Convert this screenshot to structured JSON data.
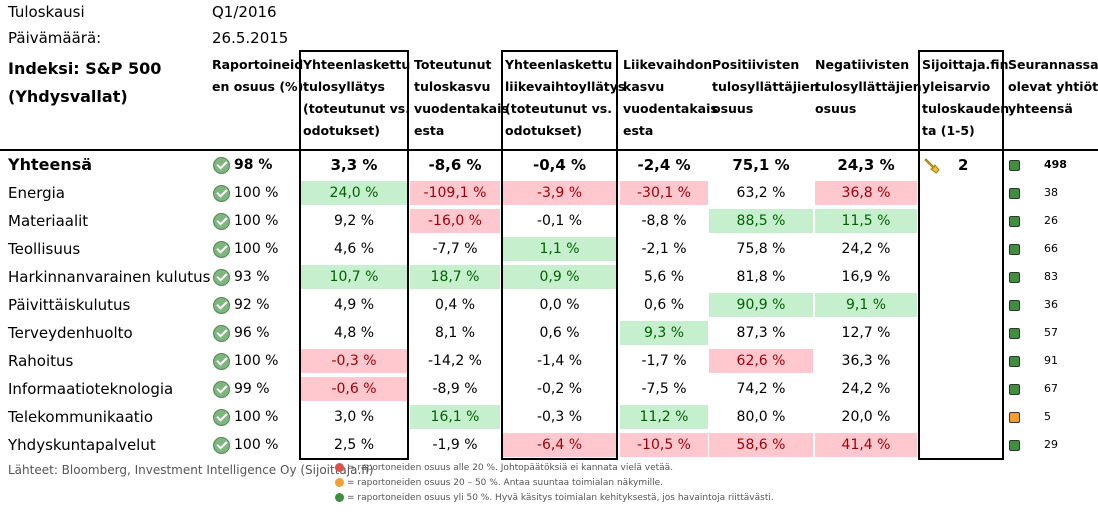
{
  "meta": {
    "season_label": "Tuloskausi",
    "season_value": "Q1/2016",
    "date_label": "Päivämäärä:",
    "date_value": "26.5.2015",
    "index_line1": "Indeksi: S&P 500",
    "index_line2": "(Yhdysvallat)"
  },
  "headers": {
    "reported": [
      "Raportoineid",
      "en osuus (%)"
    ],
    "eps_growth": [
      "Yhteenlaskettu",
      "tulosyllätys",
      "(toteutunut vs.",
      "odotukset)"
    ],
    "realized_growth": [
      "Toteutunut",
      "tuloskasvu",
      "vuodentakais",
      "esta"
    ],
    "rev_surprise": [
      "Yhteenlaskettu",
      "liikevaihtoyllätys",
      "(toteutunut vs.",
      "odotukset)"
    ],
    "rev_growth": [
      "Liikevaihdon",
      "kasvu",
      "vuodentakais",
      "esta"
    ],
    "positive": [
      "Positiivisten",
      "tulosyllättäjien",
      "osuus"
    ],
    "negative": [
      "Negatiivisten",
      "tulosyllättäjien",
      "osuus"
    ],
    "estimate": [
      "Sijoittaja.fin",
      "yleisarvio",
      "tuloskauden",
      "ta (1-5)"
    ],
    "followed": [
      "Seurannassa",
      "olevat yhtiöt",
      "yhteensä"
    ]
  },
  "total": {
    "label": "Yhteensä",
    "reported": "98 %",
    "eps": "3,3 %",
    "growth": "-8,6 %",
    "rev_surprise": "-0,4 %",
    "rev_growth": "-2,4 %",
    "positive": "75,1 %",
    "negative": "24,3 %",
    "estimate": "2",
    "count": "498"
  },
  "rows": [
    {
      "label": "Energia",
      "reported": "100 %",
      "eps": "24,0 %",
      "growth": "-109,1 %",
      "rev_surprise": "-3,9 %",
      "rev_growth": "-30,1 %",
      "positive": "63,2 %",
      "negative": "36,8 %",
      "count": "38"
    },
    {
      "label": "Materiaalit",
      "reported": "100 %",
      "eps": "9,2 %",
      "growth": "-16,0 %",
      "rev_surprise": "-0,1 %",
      "rev_growth": "-8,8 %",
      "positive": "88,5 %",
      "negative": "11,5 %",
      "count": "26"
    },
    {
      "label": "Teollisuus",
      "reported": "100 %",
      "eps": "4,6 %",
      "growth": "-7,7 %",
      "rev_surprise": "1,1 %",
      "rev_growth": "-2,1 %",
      "positive": "75,8 %",
      "negative": "24,2 %",
      "count": "66"
    },
    {
      "label": "Harkinnanvarainen kulutus",
      "reported": "93 %",
      "eps": "10,7 %",
      "growth": "18,7 %",
      "rev_surprise": "0,9 %",
      "rev_growth": "5,6 %",
      "positive": "81,8 %",
      "negative": "16,9 %",
      "count": "83"
    },
    {
      "label": "Päivittäiskulutus",
      "reported": "92 %",
      "eps": "4,9 %",
      "growth": "0,4 %",
      "rev_surprise": "0,0 %",
      "rev_growth": "0,6 %",
      "positive": "90,9 %",
      "negative": "9,1 %",
      "count": "36"
    },
    {
      "label": "Terveydenhuolto",
      "reported": "96 %",
      "eps": "4,8 %",
      "growth": "8,1 %",
      "rev_surprise": "0,6 %",
      "rev_growth": "9,3 %",
      "positive": "87,3 %",
      "negative": "12,7 %",
      "count": "57"
    },
    {
      "label": "Rahoitus",
      "reported": "100 %",
      "eps": "-0,3 %",
      "growth": "-14,2 %",
      "rev_surprise": "-1,4 %",
      "rev_growth": "-1,7 %",
      "positive": "62,6 %",
      "negative": "36,3 %",
      "count": "91"
    },
    {
      "label": "Informaatioteknologia",
      "reported": "99 %",
      "eps": "-0,6 %",
      "growth": "-8,9 %",
      "rev_surprise": "-0,2 %",
      "rev_growth": "-7,5 %",
      "positive": "74,2 %",
      "negative": "24,2 %",
      "count": "67"
    },
    {
      "label": "Telekommunikaatio",
      "reported": "100 %",
      "eps": "3,0 %",
      "growth": "16,1 %",
      "rev_surprise": "-0,3 %",
      "rev_growth": "11,2 %",
      "positive": "80,0 %",
      "negative": "20,0 %",
      "count": "5"
    },
    {
      "label": "Yhdyskuntapalvelut",
      "reported": "100 %",
      "eps": "2,5 %",
      "growth": "-1,9 %",
      "rev_surprise": "-6,4 %",
      "rev_growth": "-10,5 %",
      "positive": "58,6 %",
      "negative": "41,4 %",
      "count": "29"
    }
  ],
  "footer": {
    "sources": "Lähteet: Bloomberg, Investment Intelligence Oy (Sijoittaja.fi)",
    "legend_red": "= raportoneiden osuus alle 20 %. Johtopäätöksiä ei kannata vielä vetää.",
    "legend_orange": "= raportoneiden osuus 20 – 50 %. Antaa suuntaa toimialan näkymille.",
    "legend_green": "= raportoneiden osuus yli 50 %. Hyvä käsitys toimialan kehityksestä, jos havaintoja riittävästi."
  },
  "colors": {
    "positive_bg": "#c6efce",
    "negative_bg": "#ffc7ce",
    "dot_green": "#3f8f3f",
    "dot_orange": "#f0a030",
    "dot_red": "#d9534f"
  }
}
